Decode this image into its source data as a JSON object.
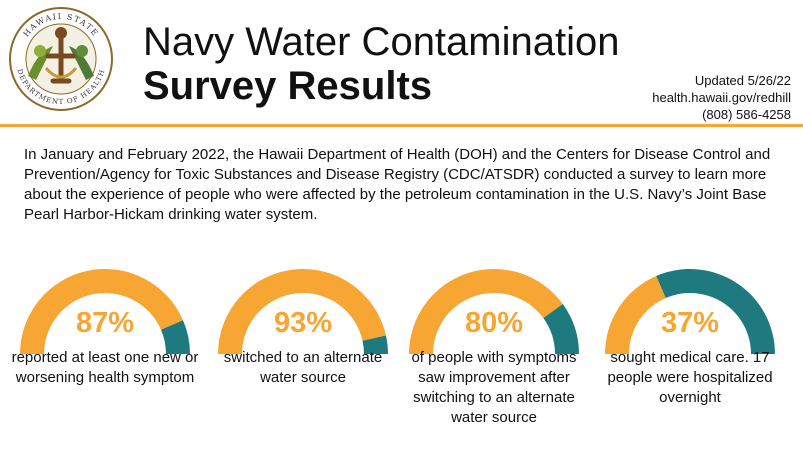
{
  "header": {
    "title_line1": "Navy Water Contamination",
    "title_line2": "Survey Results",
    "updated": "Updated 5/26/22",
    "website": "health.hawaii.gov/redhill",
    "phone": "(808) 586-4258"
  },
  "logo": {
    "top_text": "HAWAII STATE",
    "bottom_text": "DEPARTMENT OF HEALTH"
  },
  "intro": "In January and February 2022, the Hawaii Department of Health (DOH) and the Centers for Disease Control and Prevention/Agency for Toxic Substances and Disease Registry (CDC/ATSDR) conducted a survey to learn more about the experience of people who were affected by the petroleum contamination in the U.S. Navy’s Joint Base Pearl Harbor-Hickam drinking water system.",
  "colors": {
    "accent": "#f7a533",
    "remainder": "#1f7a80",
    "text": "#111111"
  },
  "chart_data": {
    "type": "gauge",
    "items": [
      {
        "percent_label": "87%",
        "value": 87,
        "caption": "reported at least one new or worsening health symptom"
      },
      {
        "percent_label": "93%",
        "value": 93,
        "caption": "switched to an alternate water source"
      },
      {
        "percent_label": "80%",
        "value": 80,
        "caption": "of people with symptoms saw improvement after switching to an alternate water source"
      },
      {
        "percent_label": "37%",
        "value": 37,
        "caption": "sought medical care. 17 people were hospitalized overnight"
      }
    ]
  }
}
